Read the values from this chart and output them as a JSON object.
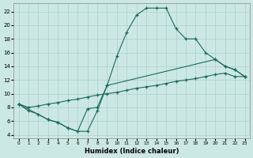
{
  "xlabel": "Humidex (Indice chaleur)",
  "bg_color": "#cce8e4",
  "grid_color": "#aacfca",
  "line_color": "#1a6b5a",
  "xlim": [
    -0.5,
    23.5
  ],
  "ylim": [
    3.5,
    23.2
  ],
  "xticks": [
    0,
    1,
    2,
    3,
    4,
    5,
    6,
    7,
    8,
    9,
    10,
    11,
    12,
    13,
    14,
    15,
    16,
    17,
    18,
    19,
    20,
    21,
    22,
    23
  ],
  "yticks": [
    4,
    6,
    8,
    10,
    12,
    14,
    16,
    18,
    20,
    22
  ],
  "line1_x": [
    0,
    1,
    2,
    3,
    4,
    5,
    6,
    7,
    8,
    9,
    10,
    11,
    12,
    13,
    14,
    15,
    16,
    17,
    18,
    19,
    20,
    21,
    22,
    23
  ],
  "line1_y": [
    8.5,
    7.5,
    7.0,
    6.2,
    5.8,
    5.0,
    4.5,
    4.5,
    7.5,
    11.2,
    15.5,
    19.0,
    21.5,
    22.5,
    22.5,
    22.5,
    19.5,
    18.0,
    18.0,
    16.0,
    15.0,
    14.0,
    13.5,
    12.5
  ],
  "line2_x": [
    0,
    1,
    2,
    3,
    4,
    5,
    6,
    7,
    8,
    9,
    10,
    11,
    12,
    13,
    14,
    15,
    16,
    17,
    18,
    19,
    20,
    21,
    22,
    23
  ],
  "line2_y": [
    8.5,
    8.0,
    8.2,
    8.5,
    8.7,
    9.0,
    9.2,
    9.5,
    9.8,
    10.0,
    10.2,
    10.5,
    10.8,
    11.0,
    11.2,
    11.5,
    11.8,
    12.0,
    12.2,
    12.5,
    12.8,
    13.0,
    12.5,
    12.5
  ],
  "line3_x": [
    0,
    3,
    4,
    5,
    6,
    7,
    8,
    9,
    20,
    21,
    22,
    23
  ],
  "line3_y": [
    8.5,
    6.2,
    5.8,
    5.0,
    4.5,
    7.8,
    8.0,
    11.2,
    15.0,
    14.0,
    13.5,
    12.5
  ]
}
